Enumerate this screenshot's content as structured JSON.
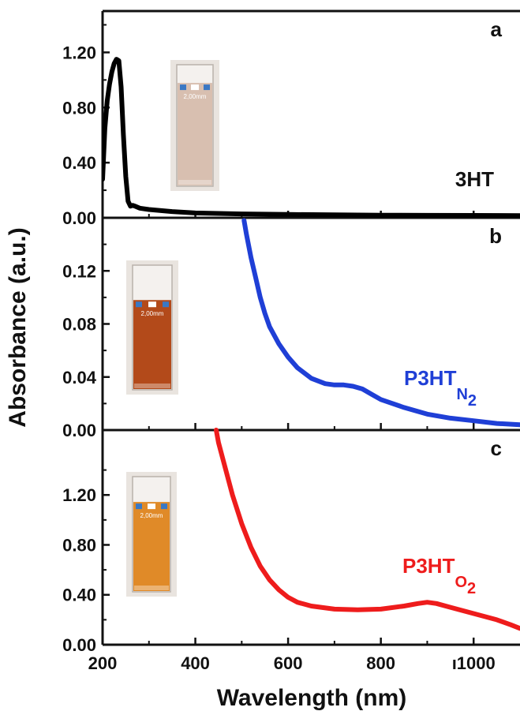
{
  "chart_data": {
    "type": "line",
    "xlabel": "Wavelength (nm)",
    "ylabel": "Absorbance (a.u.)",
    "xlim": [
      200,
      1100
    ],
    "xticks": [
      "200",
      "400",
      "600",
      "800",
      "1000"
    ],
    "grid": false,
    "panels": [
      {
        "letter": "a",
        "ylim": [
          0,
          1.5
        ],
        "yticks": [
          "0.00",
          "0.40",
          "0.80",
          "1.20"
        ],
        "series": [
          {
            "label": "3HT",
            "color": "#000000",
            "x": [
              200,
              205,
              210,
              215,
              220,
              225,
              230,
              235,
              240,
              245,
              250,
              255,
              260,
              265,
              270,
              280,
              300,
              350,
              400,
              500,
              600,
              700,
              800,
              900,
              1000,
              1100
            ],
            "y": [
              0.28,
              0.65,
              0.85,
              0.97,
              1.06,
              1.12,
              1.15,
              1.14,
              0.95,
              0.6,
              0.3,
              0.12,
              0.085,
              0.09,
              0.085,
              0.07,
              0.06,
              0.045,
              0.035,
              0.028,
              0.024,
              0.021,
              0.019,
              0.018,
              0.017,
              0.016
            ]
          }
        ],
        "photo": {
          "label": "2,00mm",
          "liquid": "#d8bfb0",
          "fill_fraction": 0.85
        }
      },
      {
        "letter": "b",
        "ylim": [
          0,
          0.16
        ],
        "yticks": [
          "0.00",
          "0.04",
          "0.08",
          "0.12"
        ],
        "series": [
          {
            "label_main": "P3HT",
            "label_sub": "N2",
            "color": "#1f3fd6",
            "x": [
              505,
              510,
              520,
              530,
              540,
              550,
              560,
              580,
              600,
              620,
              650,
              680,
              700,
              720,
              740,
              760,
              780,
              800,
              850,
              900,
              950,
              1000,
              1050,
              1100
            ],
            "y": [
              0.158,
              0.148,
              0.13,
              0.115,
              0.1,
              0.088,
              0.078,
              0.065,
              0.055,
              0.047,
              0.039,
              0.035,
              0.034,
              0.034,
              0.033,
              0.031,
              0.027,
              0.023,
              0.017,
              0.012,
              0.009,
              0.007,
              0.005,
              0.004
            ]
          }
        ],
        "photo": {
          "label": "2,00mm",
          "liquid": "#b34a1a",
          "fill_fraction": 0.72
        }
      },
      {
        "letter": "c",
        "ylim": [
          0,
          1.72
        ],
        "yticks": [
          "0.00",
          "0.40",
          "0.80",
          "1.20"
        ],
        "series": [
          {
            "label_main": "P3HT",
            "label_sub": "O2",
            "color": "#ee1c1c",
            "x": [
              445,
              450,
              460,
              480,
              500,
              520,
              540,
              560,
              580,
              600,
              620,
              650,
              700,
              750,
              800,
              850,
              880,
              900,
              920,
              950,
              1000,
              1050,
              1080,
              1100
            ],
            "y": [
              1.72,
              1.62,
              1.48,
              1.2,
              0.97,
              0.78,
              0.63,
              0.52,
              0.44,
              0.38,
              0.34,
              0.31,
              0.285,
              0.28,
              0.285,
              0.31,
              0.33,
              0.34,
              0.33,
              0.3,
              0.25,
              0.2,
              0.16,
              0.13
            ]
          }
        ],
        "photo": {
          "label": "2,00mm",
          "liquid": "#e08a28",
          "fill_fraction": 0.78
        }
      }
    ],
    "tick_label_variants": {
      "1000": "ı1000"
    }
  }
}
